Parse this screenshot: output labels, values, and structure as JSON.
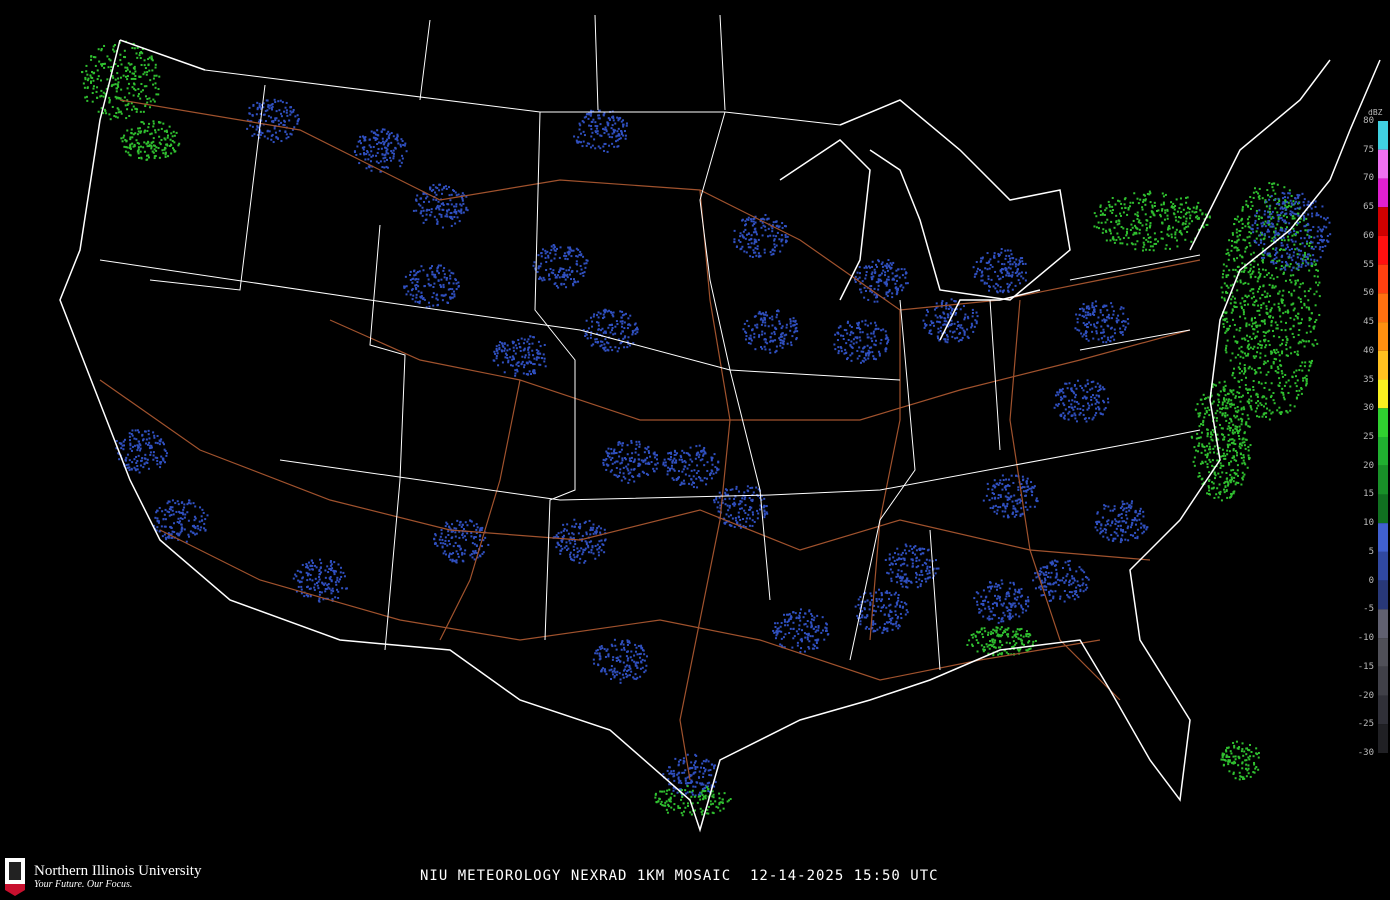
{
  "caption": "NIU METEOROLOGY NEXRAD 1KM MOSAIC  12-14-2025 15:50 UTC",
  "logo": {
    "name": "Northern Illinois University",
    "tagline": "Your Future. Our Focus.",
    "mark": "NIU"
  },
  "legend": {
    "unit": "dBZ",
    "ticks": [
      80,
      75,
      70,
      65,
      60,
      55,
      50,
      45,
      40,
      35,
      30,
      25,
      20,
      15,
      10,
      5,
      0,
      -5,
      -10,
      -15,
      -20,
      -25,
      -30
    ],
    "bands": [
      {
        "from": 75,
        "to": 80,
        "color": "#40d0e0"
      },
      {
        "from": 70,
        "to": 75,
        "color": "#f070f0"
      },
      {
        "from": 65,
        "to": 70,
        "color": "#e020d0"
      },
      {
        "from": 60,
        "to": 65,
        "color": "#d00000"
      },
      {
        "from": 55,
        "to": 60,
        "color": "#ff1010"
      },
      {
        "from": 50,
        "to": 55,
        "color": "#ff4010"
      },
      {
        "from": 45,
        "to": 50,
        "color": "#ff7010"
      },
      {
        "from": 40,
        "to": 45,
        "color": "#ff9010"
      },
      {
        "from": 35,
        "to": 40,
        "color": "#ffc020"
      },
      {
        "from": 30,
        "to": 35,
        "color": "#f8f020"
      },
      {
        "from": 25,
        "to": 30,
        "color": "#30d030"
      },
      {
        "from": 20,
        "to": 25,
        "color": "#20b030"
      },
      {
        "from": 15,
        "to": 20,
        "color": "#189028"
      },
      {
        "from": 10,
        "to": 15,
        "color": "#107020"
      },
      {
        "from": 5,
        "to": 10,
        "color": "#4060d0"
      },
      {
        "from": 0,
        "to": 5,
        "color": "#3048a0"
      },
      {
        "from": -5,
        "to": 0,
        "color": "#283878"
      },
      {
        "from": -10,
        "to": -5,
        "color": "#606070"
      },
      {
        "from": -15,
        "to": -10,
        "color": "#505058"
      },
      {
        "from": -20,
        "to": -15,
        "color": "#404048"
      },
      {
        "from": -25,
        "to": -20,
        "color": "#303038"
      },
      {
        "from": -30,
        "to": -25,
        "color": "#202024"
      }
    ]
  },
  "colors": {
    "coast": "#ffffff",
    "state_lines": "#ffffff",
    "highways": "#a0522d",
    "precip_light": "#3050c0",
    "precip_moderate": "#30c030"
  }
}
